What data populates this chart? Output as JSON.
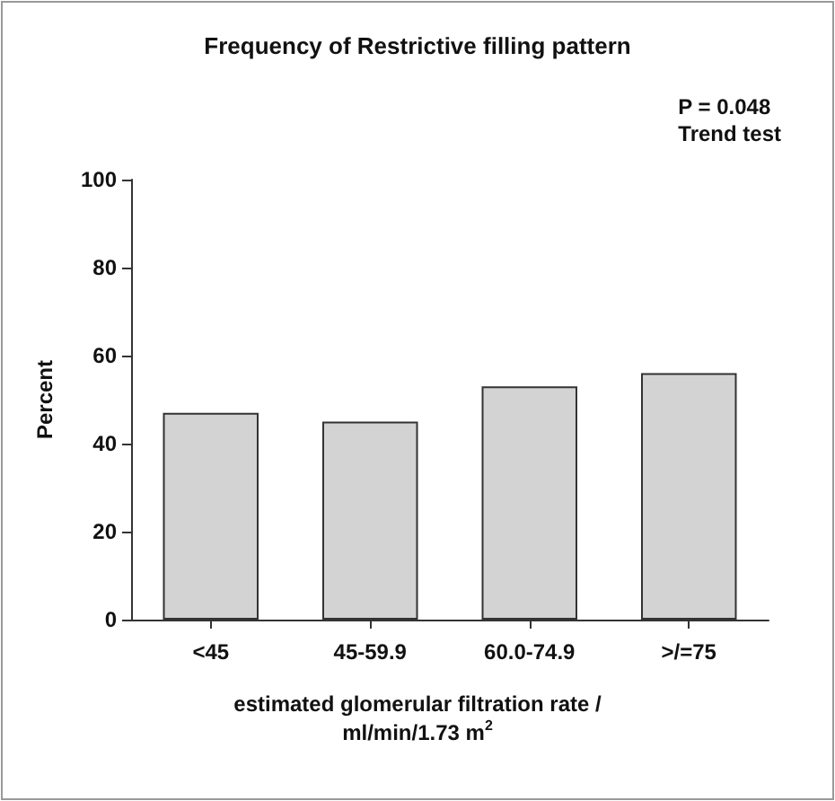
{
  "chart_data": {
    "type": "bar",
    "title": "Frequency of Restrictive filling pattern",
    "xlabel": "estimated glomerular filtration rate /\nml/min/1.73 m$^{2}$",
    "ylabel": "Percent",
    "annotations": [
      "P = 0.048\nTrend test"
    ],
    "categories": [
      "<45",
      "45-59.9",
      "60.0-74.9",
      ">/=75"
    ],
    "values": [
      47,
      45,
      53,
      56
    ],
    "color": "#d3d3d3",
    "ylim": [
      0,
      100
    ],
    "yticks": [
      0,
      20,
      40,
      60,
      80,
      100
    ],
    "grid": false
  }
}
